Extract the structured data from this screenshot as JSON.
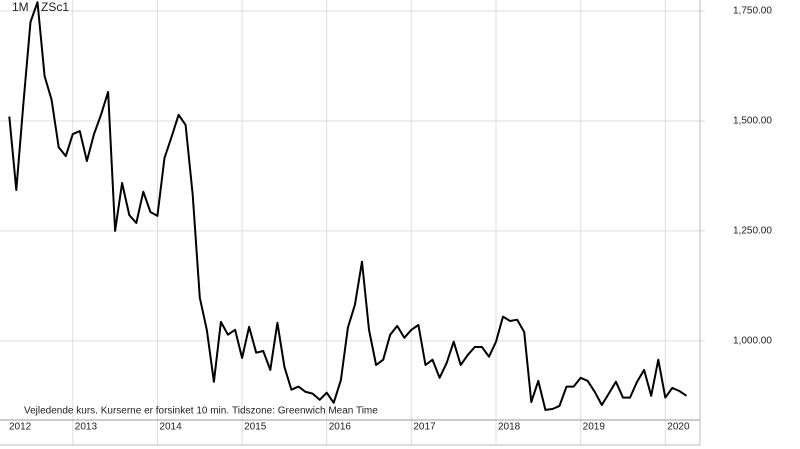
{
  "chart_data": {
    "type": "line",
    "interval": "1M",
    "symbol": "ZSc1",
    "note": "Vejledende kurs. Kurserne er forsinket 10 min.",
    "timezone": "Tidszone: Greenwich Mean Time",
    "x": [
      2012.25,
      2012.333,
      2012.417,
      2012.5,
      2012.583,
      2012.667,
      2012.75,
      2012.833,
      2012.917,
      2013.0,
      2013.083,
      2013.167,
      2013.25,
      2013.333,
      2013.417,
      2013.5,
      2013.583,
      2013.667,
      2013.75,
      2013.833,
      2013.917,
      2014.0,
      2014.083,
      2014.167,
      2014.25,
      2014.333,
      2014.417,
      2014.5,
      2014.583,
      2014.667,
      2014.75,
      2014.833,
      2014.917,
      2015.0,
      2015.083,
      2015.167,
      2015.25,
      2015.333,
      2015.417,
      2015.5,
      2015.583,
      2015.667,
      2015.75,
      2015.833,
      2015.917,
      2016.0,
      2016.083,
      2016.167,
      2016.25,
      2016.333,
      2016.417,
      2016.5,
      2016.583,
      2016.667,
      2016.75,
      2016.833,
      2016.917,
      2017.0,
      2017.083,
      2017.167,
      2017.25,
      2017.333,
      2017.417,
      2017.5,
      2017.583,
      2017.667,
      2017.75,
      2017.833,
      2017.917,
      2018.0,
      2018.083,
      2018.167,
      2018.25,
      2018.333,
      2018.417,
      2018.5,
      2018.583,
      2018.667,
      2018.75,
      2018.833,
      2018.917,
      2019.0,
      2019.083,
      2019.167,
      2019.25,
      2019.333,
      2019.417,
      2019.5,
      2019.583,
      2019.667,
      2019.75,
      2019.833,
      2019.917,
      2020.0,
      2020.083,
      2020.167,
      2020.25
    ],
    "series": [
      {
        "color": "#000000",
        "values": [
          1510,
          1343,
          1540,
          1725,
          1770,
          1602,
          1548,
          1440,
          1420,
          1470,
          1477,
          1409,
          1470,
          1514,
          1566,
          1250,
          1359,
          1286,
          1268,
          1339,
          1293,
          1284,
          1416,
          1464,
          1514,
          1491,
          1332,
          1098,
          1025,
          907,
          1043,
          1014,
          1025,
          961,
          1032,
          973,
          977,
          934,
          1041,
          941,
          889,
          896,
          884,
          880,
          866,
          882,
          859,
          911,
          1030,
          1082,
          1180,
          1025,
          945,
          957,
          1014,
          1034,
          1007,
          1025,
          1036,
          945,
          957,
          916,
          950,
          998,
          945,
          968,
          986,
          986,
          964,
          998,
          1055,
          1045,
          1048,
          1020,
          861,
          909,
          843,
          845,
          852,
          896,
          896,
          916,
          909,
          884,
          854,
          880,
          907,
          871,
          871,
          907,
          934,
          875,
          957,
          871,
          893,
          886,
          875
        ]
      }
    ],
    "xlim": [
      2012.14,
      2020.41
    ],
    "xticks": [
      2012,
      2013,
      2014,
      2015,
      2016,
      2017,
      2018,
      2019,
      2020
    ],
    "ylim": [
      820,
      1775
    ],
    "yticks": [
      {
        "value": 1000,
        "label": "1,000.00"
      },
      {
        "value": 1250,
        "label": "1,250.00"
      },
      {
        "value": 1500,
        "label": "1,500.00"
      },
      {
        "value": 1750,
        "label": "1,750.00"
      }
    ],
    "grid": true
  }
}
